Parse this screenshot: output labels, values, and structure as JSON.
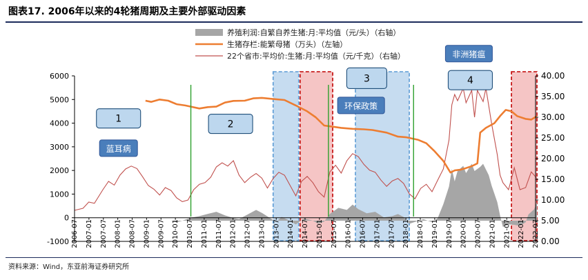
{
  "figure": {
    "title": "图表17. 2006年以来的4轮猪周期及主要外部驱动因素",
    "source": "资料来源：Wind，东亚前海证券研究所"
  },
  "chart_data": {
    "type": "combo",
    "x_labels": [
      "2006-07",
      "2007-01",
      "2007-07",
      "2008-01",
      "2008-07",
      "2009-01",
      "2009-07",
      "2010-01",
      "2010-07",
      "2011-01",
      "2011-07",
      "2012-01",
      "2012-07",
      "2013-01",
      "2013-07",
      "2014-01",
      "2014-07",
      "2015-01",
      "2015-07",
      "2016-01",
      "2016-07",
      "2017-01",
      "2017-07",
      "2018-01",
      "2018-07",
      "2019-01",
      "2019-07",
      "2020-01",
      "2020-07",
      "2021-01",
      "2021-07",
      "2022-01",
      "2022-07"
    ],
    "left_axis": {
      "min": -1000,
      "max": 6000,
      "ticks": [
        "-1000",
        "0",
        "1000",
        "2000",
        "3000",
        "4000",
        "5000",
        "6000"
      ]
    },
    "right_axis": {
      "min": 0,
      "max": 40,
      "ticks": [
        "0.00",
        "5.00",
        "10.00",
        "15.00",
        "20.00",
        "25.00",
        "30.00",
        "35.00",
        "40.00"
      ]
    },
    "legend": [
      {
        "label": "养殖利润:自繁自养生猪:月:平均值（元/头）（右轴）",
        "kind": "area",
        "color": "#a6a6a6"
      },
      {
        "label": "生猪存栏:能繁母猪（万头）（左轴）",
        "kind": "line",
        "color": "#ed7d31"
      },
      {
        "label": "22个省市:平均价:生猪:月:平均值（元/千克）（右轴）",
        "kind": "line",
        "color": "#c0504d"
      }
    ],
    "series": {
      "profit": {
        "name": "养殖利润（元/头）",
        "points": [
          [
            2009.2,
            0
          ],
          [
            2009.9,
            0
          ],
          [
            2010.1,
            -80
          ],
          [
            2010.3,
            0
          ],
          [
            2010.6,
            140
          ],
          [
            2010.9,
            220
          ],
          [
            2011.2,
            330
          ],
          [
            2011.5,
            430
          ],
          [
            2011.8,
            260
          ],
          [
            2012.1,
            130
          ],
          [
            2012.3,
            80
          ],
          [
            2012.6,
            300
          ],
          [
            2012.9,
            520
          ],
          [
            2013.1,
            380
          ],
          [
            2013.4,
            120
          ],
          [
            2013.6,
            -60
          ],
          [
            2013.8,
            180
          ],
          [
            2014.0,
            60
          ],
          [
            2014.3,
            -180
          ],
          [
            2014.6,
            110
          ],
          [
            2014.9,
            0
          ],
          [
            2015.1,
            -150
          ],
          [
            2015.3,
            -40
          ],
          [
            2015.5,
            330
          ],
          [
            2015.8,
            620
          ],
          [
            2016.1,
            520
          ],
          [
            2016.3,
            780
          ],
          [
            2016.5,
            560
          ],
          [
            2016.8,
            360
          ],
          [
            2017.1,
            430
          ],
          [
            2017.4,
            160
          ],
          [
            2017.7,
            220
          ],
          [
            2017.9,
            320
          ],
          [
            2018.1,
            180
          ],
          [
            2018.3,
            -150
          ],
          [
            2018.5,
            -60
          ],
          [
            2018.8,
            70
          ],
          [
            2019.1,
            -70
          ],
          [
            2019.3,
            120
          ],
          [
            2019.5,
            800
          ],
          [
            2019.7,
            1650
          ],
          [
            2019.8,
            2500
          ],
          [
            2019.9,
            1900
          ],
          [
            2020.0,
            2400
          ],
          [
            2020.2,
            2650
          ],
          [
            2020.3,
            2300
          ],
          [
            2020.5,
            2750
          ],
          [
            2020.6,
            2400
          ],
          [
            2020.8,
            2600
          ],
          [
            2020.9,
            2750
          ],
          [
            2021.1,
            2200
          ],
          [
            2021.2,
            1700
          ],
          [
            2021.4,
            900
          ],
          [
            2021.5,
            250
          ],
          [
            2021.6,
            -300
          ],
          [
            2021.8,
            -180
          ],
          [
            2022.0,
            -200
          ],
          [
            2022.2,
            -250
          ],
          [
            2022.4,
            -80
          ],
          [
            2022.5,
            300
          ],
          [
            2022.7,
            550
          ],
          [
            2022.8,
            900
          ]
        ]
      },
      "sows": {
        "name": "生猪存栏:能繁母猪（万头）",
        "points": [
          [
            2009.0,
            4950
          ],
          [
            2009.2,
            4900
          ],
          [
            2009.5,
            5000
          ],
          [
            2009.8,
            4950
          ],
          [
            2010.1,
            4800
          ],
          [
            2010.4,
            4750
          ],
          [
            2010.6,
            4700
          ],
          [
            2010.9,
            4620
          ],
          [
            2011.2,
            4680
          ],
          [
            2011.5,
            4700
          ],
          [
            2011.8,
            4870
          ],
          [
            2012.1,
            4940
          ],
          [
            2012.5,
            4950
          ],
          [
            2012.8,
            5050
          ],
          [
            2013.1,
            5070
          ],
          [
            2013.5,
            5020
          ],
          [
            2013.9,
            4980
          ],
          [
            2014.3,
            4750
          ],
          [
            2014.7,
            4500
          ],
          [
            2015.0,
            4250
          ],
          [
            2015.3,
            3900
          ],
          [
            2015.6,
            3850
          ],
          [
            2015.9,
            3800
          ],
          [
            2016.3,
            3760
          ],
          [
            2016.7,
            3740
          ],
          [
            2017.0,
            3710
          ],
          [
            2017.5,
            3600
          ],
          [
            2017.9,
            3430
          ],
          [
            2018.2,
            3400
          ],
          [
            2018.6,
            3300
          ],
          [
            2018.9,
            3150
          ],
          [
            2019.2,
            2800
          ],
          [
            2019.5,
            2400
          ],
          [
            2019.75,
            1910
          ],
          [
            2019.9,
            2000
          ],
          [
            2020.1,
            2030
          ],
          [
            2020.3,
            2100
          ],
          [
            2020.5,
            2180
          ],
          [
            2020.7,
            2300
          ],
          [
            2020.8,
            3600
          ],
          [
            2021.0,
            3800
          ],
          [
            2021.3,
            4000
          ],
          [
            2021.5,
            4300
          ],
          [
            2021.7,
            4560
          ],
          [
            2021.9,
            4500
          ],
          [
            2022.1,
            4300
          ],
          [
            2022.4,
            4180
          ],
          [
            2022.6,
            4150
          ],
          [
            2022.8,
            4300
          ]
        ]
      },
      "price": {
        "name": "22个省市:平均价:生猪（元/千克）",
        "points": [
          [
            2006.5,
            7.5
          ],
          [
            2006.8,
            8.0
          ],
          [
            2007.0,
            9.5
          ],
          [
            2007.2,
            9.2
          ],
          [
            2007.5,
            12.5
          ],
          [
            2007.7,
            14.5
          ],
          [
            2007.9,
            13.6
          ],
          [
            2008.1,
            16.0
          ],
          [
            2008.3,
            17.5
          ],
          [
            2008.5,
            18.2
          ],
          [
            2008.7,
            17.6
          ],
          [
            2008.9,
            15.6
          ],
          [
            2009.1,
            13.5
          ],
          [
            2009.3,
            12.6
          ],
          [
            2009.5,
            11.2
          ],
          [
            2009.7,
            13.0
          ],
          [
            2009.9,
            12.3
          ],
          [
            2010.1,
            10.5
          ],
          [
            2010.3,
            9.6
          ],
          [
            2010.5,
            10.0
          ],
          [
            2010.7,
            12.5
          ],
          [
            2010.9,
            13.8
          ],
          [
            2011.1,
            14.2
          ],
          [
            2011.3,
            15.5
          ],
          [
            2011.5,
            18.0
          ],
          [
            2011.7,
            19.0
          ],
          [
            2011.9,
            18.2
          ],
          [
            2012.1,
            19.5
          ],
          [
            2012.3,
            16.0
          ],
          [
            2012.5,
            14.2
          ],
          [
            2012.7,
            15.5
          ],
          [
            2012.9,
            16.4
          ],
          [
            2013.1,
            15.3
          ],
          [
            2013.3,
            12.9
          ],
          [
            2013.5,
            15.2
          ],
          [
            2013.7,
            16.7
          ],
          [
            2013.9,
            16.0
          ],
          [
            2014.1,
            13.5
          ],
          [
            2014.3,
            11.0
          ],
          [
            2014.5,
            14.5
          ],
          [
            2014.7,
            15.7
          ],
          [
            2014.9,
            14.2
          ],
          [
            2015.1,
            12.0
          ],
          [
            2015.3,
            10.7
          ],
          [
            2015.5,
            16.8
          ],
          [
            2015.7,
            18.4
          ],
          [
            2015.9,
            16.5
          ],
          [
            2016.1,
            19.5
          ],
          [
            2016.3,
            21.2
          ],
          [
            2016.5,
            20.5
          ],
          [
            2016.7,
            18.6
          ],
          [
            2016.9,
            17.2
          ],
          [
            2017.1,
            16.7
          ],
          [
            2017.3,
            14.8
          ],
          [
            2017.5,
            13.3
          ],
          [
            2017.7,
            14.6
          ],
          [
            2017.9,
            15.2
          ],
          [
            2018.1,
            14.0
          ],
          [
            2018.3,
            11.5
          ],
          [
            2018.5,
            10.3
          ],
          [
            2018.7,
            12.8
          ],
          [
            2018.9,
            13.8
          ],
          [
            2019.1,
            12.0
          ],
          [
            2019.3,
            14.8
          ],
          [
            2019.5,
            17.5
          ],
          [
            2019.7,
            24.5
          ],
          [
            2019.8,
            33.0
          ],
          [
            2019.9,
            35.5
          ],
          [
            2020.0,
            34.0
          ],
          [
            2020.2,
            37.0
          ],
          [
            2020.3,
            33.5
          ],
          [
            2020.5,
            36.5
          ],
          [
            2020.6,
            30.0
          ],
          [
            2020.7,
            36.5
          ],
          [
            2020.9,
            33.8
          ],
          [
            2021.0,
            37.0
          ],
          [
            2021.2,
            28.5
          ],
          [
            2021.4,
            21.0
          ],
          [
            2021.5,
            16.0
          ],
          [
            2021.6,
            14.2
          ],
          [
            2021.8,
            12.5
          ],
          [
            2022.0,
            17.8
          ],
          [
            2022.2,
            12.5
          ],
          [
            2022.4,
            13.0
          ],
          [
            2022.6,
            16.8
          ],
          [
            2022.8,
            15.2
          ]
        ]
      }
    },
    "cycle_dividers": [
      2010.6,
      2015.45,
      2018.45
    ],
    "shaded_periods": [
      {
        "start": 2013.5,
        "end": 2014.4,
        "style": "blue"
      },
      {
        "start": 2014.45,
        "end": 2015.6,
        "style": "red"
      },
      {
        "start": 2016.4,
        "end": 2018.3,
        "style": "blue"
      },
      {
        "start": 2021.9,
        "end": 2022.8,
        "style": "red"
      }
    ],
    "annotations": [
      {
        "id": "cycle-1",
        "text": "1",
        "x": 2008.05,
        "y": 4200,
        "kind": "box"
      },
      {
        "id": "cycle-2",
        "text": "2",
        "x": 2012.0,
        "y": 3970,
        "kind": "box"
      },
      {
        "id": "cycle-3",
        "text": "3",
        "x": 2016.8,
        "y": 5900,
        "kind": "box"
      },
      {
        "id": "cycle-4",
        "text": "4",
        "x": 2020.45,
        "y": 5820,
        "kind": "box"
      },
      {
        "id": "blue-ear",
        "text": "蓝耳病",
        "x": 2008.05,
        "y": 2940,
        "kind": "tag"
      },
      {
        "id": "env-policy",
        "text": "环保政策",
        "x": 2016.6,
        "y": 4750,
        "kind": "tag"
      },
      {
        "id": "asf",
        "text": "非洲猪瘟",
        "x": 2020.4,
        "y": 6940,
        "kind": "tag"
      }
    ]
  }
}
